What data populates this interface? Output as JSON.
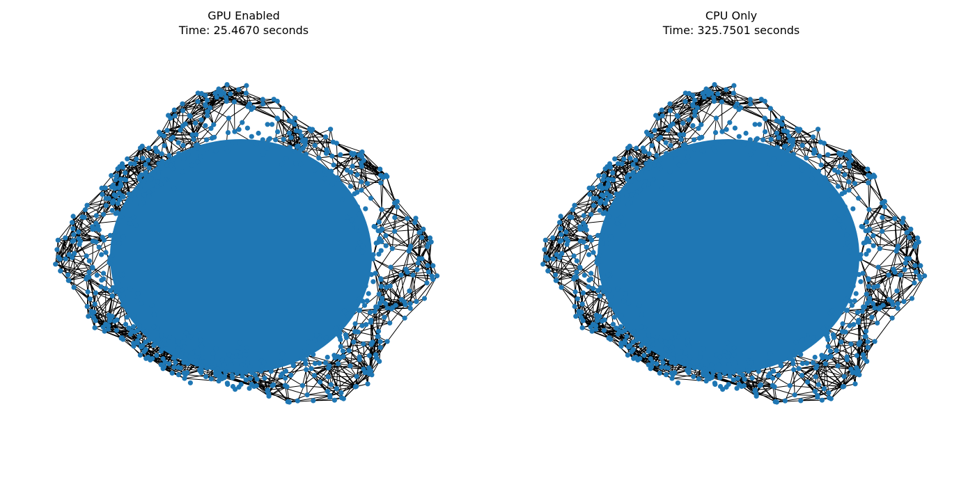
{
  "figure": {
    "panels": [
      {
        "title": "GPU Enabled",
        "subtitle": "Time: 25.4670 seconds"
      },
      {
        "title": "CPU Only",
        "subtitle": "Time: 325.7501 seconds"
      }
    ]
  },
  "colors": {
    "node": "#1f77b4",
    "edge": "#000000",
    "background": "#ffffff"
  }
}
